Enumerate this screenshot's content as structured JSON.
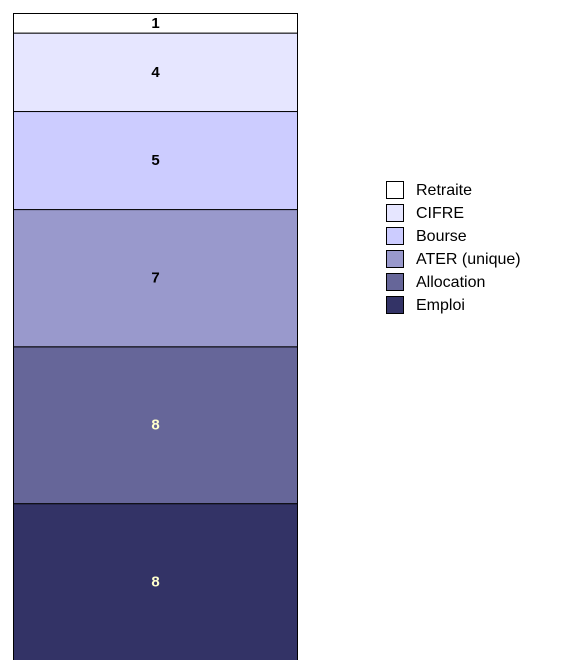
{
  "chart_data": {
    "type": "bar",
    "stacked": true,
    "series": [
      {
        "name": "Emploi",
        "color": "#333366",
        "values": [
          8
        ]
      },
      {
        "name": "Allocation",
        "color": "#666699",
        "values": [
          8
        ]
      },
      {
        "name": "ATER (unique)",
        "color": "#9999cc",
        "values": [
          7
        ]
      },
      {
        "name": "Bourse",
        "color": "#ccccff",
        "values": [
          5
        ]
      },
      {
        "name": "CIFRE",
        "color": "#e6e6ff",
        "values": [
          4
        ]
      },
      {
        "name": "Retraite",
        "color": "#ffffff",
        "values": [
          1
        ]
      }
    ],
    "legend": "right"
  }
}
